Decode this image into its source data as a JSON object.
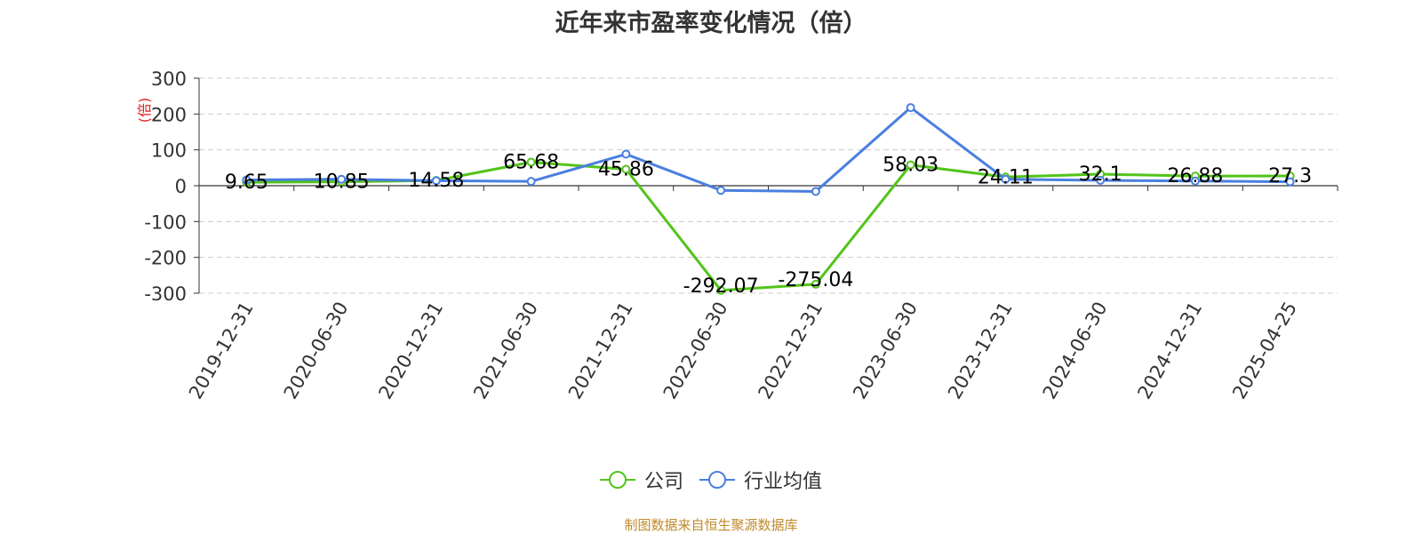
{
  "chart_data": {
    "type": "line",
    "title": "近年来市盈率变化情况（倍）",
    "ylabel": "(倍)",
    "xlabel": "",
    "categories": [
      "2019-12-31",
      "2020-06-30",
      "2020-12-31",
      "2021-06-30",
      "2021-12-31",
      "2022-06-30",
      "2022-12-31",
      "2023-06-30",
      "2023-12-31",
      "2024-06-30",
      "2024-12-31",
      "2025-04-25"
    ],
    "ylim": [
      -300,
      300
    ],
    "yticks": [
      300,
      200,
      100,
      0,
      -100,
      -200,
      -300
    ],
    "grid": true,
    "legend_position": "bottom-center",
    "series": [
      {
        "name": "公司",
        "color": "#52c41a",
        "values": [
          9.65,
          10.85,
          14.58,
          65.68,
          45.86,
          -292.07,
          -275.04,
          58.03,
          24.11,
          32.1,
          26.88,
          27.3
        ],
        "labels": [
          "9.65",
          "10.85",
          "14.58",
          "65.68",
          "45.86",
          "-292.07",
          "-275.04",
          "58.03",
          "24.11",
          "32.1",
          "26.88",
          "27.3"
        ]
      },
      {
        "name": "行业均值",
        "color": "#4a7fe0",
        "values": [
          16,
          18,
          14,
          12,
          88,
          -13,
          -16,
          218,
          18,
          15,
          13,
          11
        ]
      }
    ],
    "source": "制图数据来自恒生聚源数据库"
  }
}
